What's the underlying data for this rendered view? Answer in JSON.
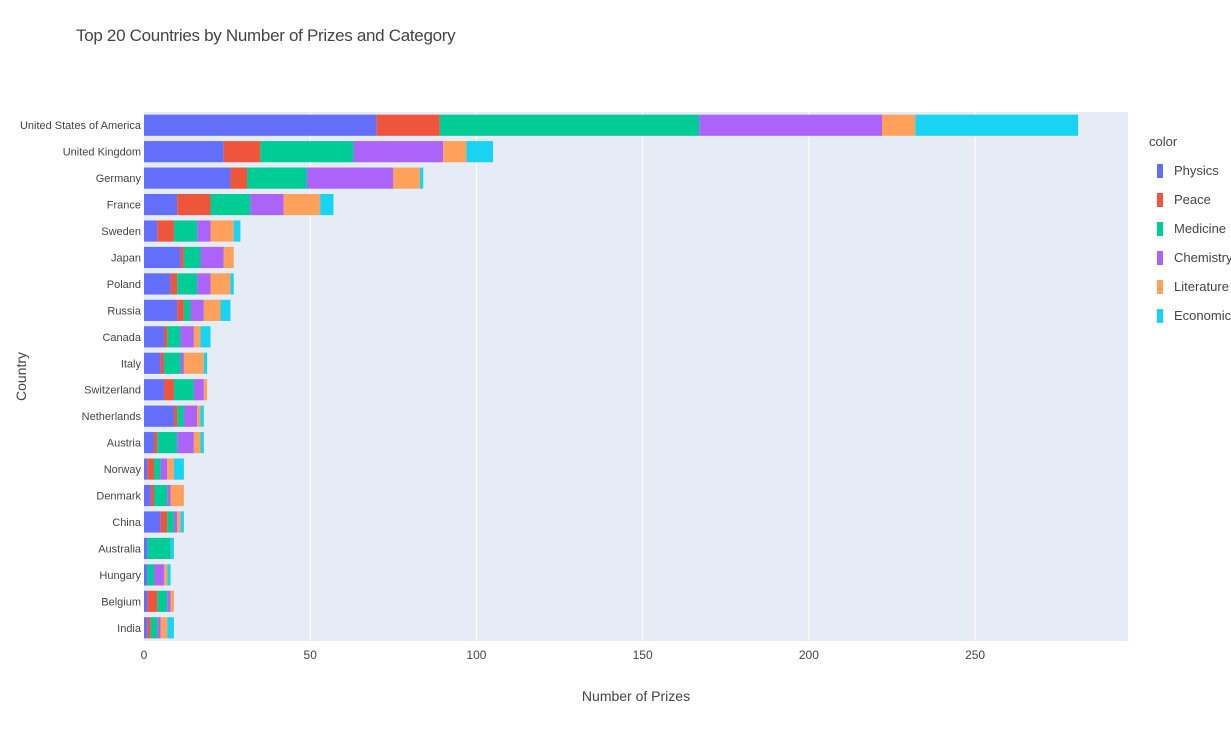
{
  "chart_data": {
    "type": "bar",
    "orientation": "horizontal",
    "stacked": true,
    "title": "Top 20 Countries by Number of Prizes and Category",
    "xlabel": "Number of Prizes",
    "ylabel": "Country",
    "xlim": [
      0,
      296
    ],
    "x_ticks": [
      0,
      50,
      100,
      150,
      200,
      250
    ],
    "grid": true,
    "legend_title": "color",
    "legend_position": "right",
    "categories": [
      "United States of America",
      "United Kingdom",
      "Germany",
      "France",
      "Sweden",
      "Japan",
      "Poland",
      "Russia",
      "Canada",
      "Italy",
      "Switzerland",
      "Netherlands",
      "Austria",
      "Norway",
      "Denmark",
      "China",
      "Australia",
      "Hungary",
      "Belgium",
      "India"
    ],
    "series": [
      {
        "name": "Physics",
        "color": "#636efa",
        "values": [
          70,
          24,
          26,
          10,
          4,
          11,
          8,
          10,
          6,
          5,
          6,
          9,
          3,
          1,
          2,
          5,
          1,
          1,
          1,
          1
        ]
      },
      {
        "name": "Peace",
        "color": "#ef553b",
        "values": [
          19,
          11,
          5,
          10,
          5,
          1,
          2,
          2,
          1,
          1,
          3,
          1,
          1,
          2,
          1,
          2,
          0,
          0,
          3,
          1
        ]
      },
      {
        "name": "Medicine",
        "color": "#00cc96",
        "values": [
          78,
          28,
          18,
          12,
          7,
          5,
          6,
          2,
          4,
          5,
          6,
          2,
          6,
          2,
          4,
          2,
          7,
          2,
          3,
          2
        ]
      },
      {
        "name": "Chemistry",
        "color": "#ab63fa",
        "values": [
          55,
          27,
          26,
          10,
          4,
          7,
          4,
          4,
          4,
          1,
          3,
          4,
          5,
          2,
          1,
          1,
          0,
          3,
          1,
          1
        ]
      },
      {
        "name": "Literature",
        "color": "#ffa15a",
        "values": [
          10,
          7,
          8,
          11,
          7,
          3,
          6,
          5,
          2,
          6,
          1,
          1,
          2,
          2,
          4,
          1,
          0,
          1,
          1,
          2
        ]
      },
      {
        "name": "Economics",
        "color": "#19d3f3",
        "values": [
          49,
          8,
          1,
          4,
          2,
          0,
          1,
          3,
          3,
          1,
          0,
          1,
          1,
          3,
          0,
          1,
          1,
          1,
          0,
          2
        ]
      }
    ]
  }
}
